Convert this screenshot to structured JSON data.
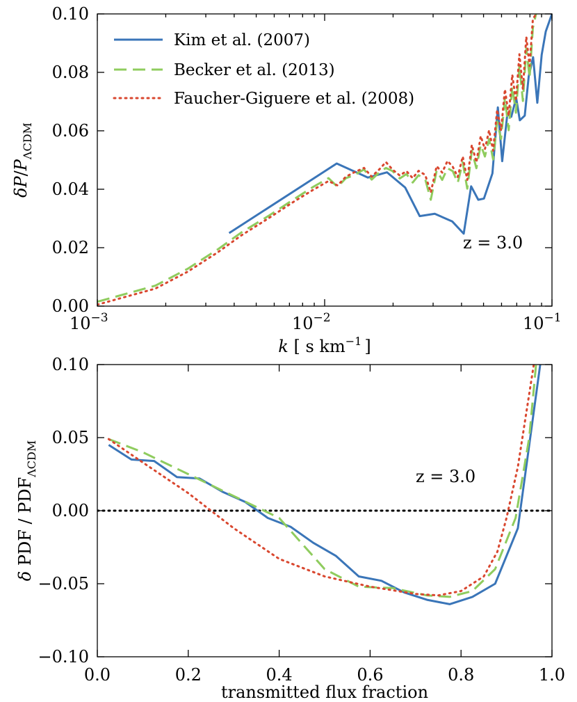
{
  "chart_data": [
    {
      "type": "line",
      "x_scale": "log",
      "xlim": [
        0.001,
        0.1
      ],
      "ylim": [
        0.0,
        0.1
      ],
      "x_ticks": [
        0.001,
        0.01,
        0.1
      ],
      "x_tick_labels": [
        {
          "base": "10",
          "exp": "−3"
        },
        {
          "base": "10",
          "exp": "−2"
        },
        {
          "base": "10",
          "exp": "−1"
        }
      ],
      "y_ticks": [
        0.0,
        0.02,
        0.04,
        0.06,
        0.08,
        0.1
      ],
      "y_tick_labels": [
        "0.00",
        "0.02",
        "0.04",
        "0.06",
        "0.08",
        "0.10"
      ],
      "xlabel": {
        "k": "k",
        "unit": " [ s km",
        "exp": "−1",
        "close": "]"
      },
      "ylabel": {
        "delta": "δ",
        "P": "P",
        "slash": "/",
        "P2": "P",
        "sub": "ΛCDM"
      },
      "annotation": "z = 3.0",
      "legend_position": "top-left",
      "series": [
        {
          "name": "Kim et al. (2007)",
          "color": "#3a75b8",
          "style": "solid",
          "x": [
            0.0038,
            0.0113,
            0.0155,
            0.0188,
            0.0226,
            0.0262,
            0.0305,
            0.0364,
            0.0409,
            0.0441,
            0.0474,
            0.0502,
            0.0547,
            0.0578,
            0.0604,
            0.0636,
            0.0662,
            0.0696,
            0.0722,
            0.0759,
            0.079,
            0.0826,
            0.0862,
            0.0901,
            0.0939,
            0.1
          ],
          "values": [
            0.025,
            0.0488,
            0.044,
            0.0458,
            0.0406,
            0.0308,
            0.0316,
            0.029,
            0.0248,
            0.041,
            0.0364,
            0.0368,
            0.0454,
            0.068,
            0.0496,
            0.0656,
            0.0648,
            0.0712,
            0.0636,
            0.0652,
            0.0786,
            0.0852,
            0.0696,
            0.086,
            0.094,
            0.1
          ]
        },
        {
          "name": "Becker et al. (2013)",
          "color": "#8fcc5e",
          "style": "dashed",
          "x": [
            0.001,
            0.0018,
            0.0025,
            0.0034,
            0.0043,
            0.0057,
            0.0072,
            0.0089,
            0.0104,
            0.0114,
            0.0124,
            0.0135,
            0.0149,
            0.0161,
            0.0174,
            0.0186,
            0.0199,
            0.0214,
            0.0229,
            0.0244,
            0.0259,
            0.0277,
            0.0293,
            0.0311,
            0.0329,
            0.0347,
            0.0366,
            0.0385,
            0.0405,
            0.0424,
            0.0444,
            0.0465,
            0.0486,
            0.0507,
            0.0529,
            0.0551,
            0.0574,
            0.0597,
            0.0621,
            0.0645,
            0.0669,
            0.0694,
            0.0719,
            0.0745,
            0.0771,
            0.0797,
            0.0824,
            0.0851
          ],
          "values": [
            0.0015,
            0.007,
            0.0128,
            0.0195,
            0.0252,
            0.031,
            0.0362,
            0.0408,
            0.0438,
            0.0408,
            0.0438,
            0.0448,
            0.0468,
            0.0433,
            0.0458,
            0.0473,
            0.0462,
            0.0437,
            0.0452,
            0.0423,
            0.0448,
            0.0434,
            0.0364,
            0.0464,
            0.0432,
            0.0472,
            0.0462,
            0.0422,
            0.0492,
            0.0402,
            0.0532,
            0.0472,
            0.0552,
            0.0512,
            0.0572,
            0.0502,
            0.0632,
            0.0572,
            0.0712,
            0.0602,
            0.0752,
            0.0662,
            0.0822,
            0.0702,
            0.0882,
            0.0782,
            0.0952,
            0.1
          ]
        },
        {
          "name": "Faucher-Giguere et al. (2008)",
          "color": "#d9472f",
          "style": "dotted",
          "x": [
            0.001,
            0.0018,
            0.0025,
            0.0034,
            0.0043,
            0.0057,
            0.0072,
            0.0089,
            0.0104,
            0.0114,
            0.0124,
            0.0135,
            0.0149,
            0.0161,
            0.0174,
            0.0186,
            0.0199,
            0.0214,
            0.0229,
            0.0244,
            0.0259,
            0.0277,
            0.0293,
            0.0311,
            0.0329,
            0.0347,
            0.0366,
            0.0385,
            0.0405,
            0.0424,
            0.0444,
            0.0465,
            0.0486,
            0.0507,
            0.0529,
            0.0551,
            0.0574,
            0.0597,
            0.0621,
            0.0645,
            0.0669,
            0.0694,
            0.0719,
            0.0745,
            0.0771,
            0.0797,
            0.0824,
            0.0851
          ],
          "values": [
            0.0005,
            0.006,
            0.0118,
            0.0185,
            0.0242,
            0.0302,
            0.0354,
            0.0398,
            0.0428,
            0.0413,
            0.0443,
            0.0458,
            0.0473,
            0.0443,
            0.0468,
            0.0493,
            0.0467,
            0.0447,
            0.0462,
            0.0438,
            0.0463,
            0.0449,
            0.0389,
            0.0479,
            0.0457,
            0.0497,
            0.0477,
            0.0442,
            0.0512,
            0.0432,
            0.0552,
            0.0492,
            0.0582,
            0.0537,
            0.0602,
            0.0532,
            0.0672,
            0.0602,
            0.0742,
            0.0652,
            0.0792,
            0.0702,
            0.0862,
            0.0742,
            0.0922,
            0.0822,
            0.0982,
            0.1
          ]
        }
      ]
    },
    {
      "type": "line",
      "x_scale": "linear",
      "xlim": [
        0.0,
        1.0
      ],
      "ylim": [
        -0.1,
        0.1
      ],
      "x_ticks": [
        0.0,
        0.2,
        0.4,
        0.6,
        0.8,
        1.0
      ],
      "x_tick_labels": [
        "0.0",
        "0.2",
        "0.4",
        "0.6",
        "0.8",
        "1.0"
      ],
      "y_ticks": [
        -0.1,
        -0.05,
        0.0,
        0.05,
        0.1
      ],
      "y_tick_labels": [
        "−0.10",
        "−0.05",
        "0.00",
        "0.05",
        "0.10"
      ],
      "xlabel": "transmitted flux fraction",
      "ylabel": {
        "delta": "δ",
        "main": " PDF / PDF",
        "sub": "ΛCDM"
      },
      "annotation": "z = 3.0",
      "reference_line": {
        "y": 0.0,
        "style": "dotted",
        "color": "#000000"
      },
      "series": [
        {
          "name": "Kim et al. (2007)",
          "color": "#3a75b8",
          "style": "solid",
          "x": [
            0.025,
            0.075,
            0.125,
            0.175,
            0.225,
            0.275,
            0.325,
            0.375,
            0.425,
            0.475,
            0.525,
            0.575,
            0.625,
            0.675,
            0.725,
            0.775,
            0.825,
            0.875,
            0.925,
            0.975
          ],
          "values": [
            0.045,
            0.035,
            0.034,
            0.023,
            0.022,
            0.013,
            0.006,
            -0.005,
            -0.011,
            -0.022,
            -0.031,
            -0.045,
            -0.048,
            -0.056,
            -0.061,
            -0.064,
            -0.059,
            -0.05,
            -0.012,
            0.102
          ]
        },
        {
          "name": "Becker et al. (2013)",
          "color": "#8fcc5e",
          "style": "dashed",
          "x": [
            0.025,
            0.1,
            0.2,
            0.3,
            0.4,
            0.5,
            0.575,
            0.65,
            0.725,
            0.775,
            0.825,
            0.875,
            0.92,
            0.95,
            0.965
          ],
          "values": [
            0.049,
            0.04,
            0.025,
            0.01,
            -0.005,
            -0.04,
            -0.052,
            -0.053,
            -0.058,
            -0.059,
            -0.055,
            -0.04,
            -0.005,
            0.05,
            0.1
          ]
        },
        {
          "name": "Faucher-Giguere et al. (2008)",
          "color": "#d9472f",
          "style": "dotted",
          "x": [
            0.025,
            0.1,
            0.2,
            0.3,
            0.4,
            0.5,
            0.6,
            0.7,
            0.75,
            0.8,
            0.85,
            0.88,
            0.9,
            0.925,
            0.945,
            0.96
          ],
          "values": [
            0.049,
            0.033,
            0.012,
            -0.012,
            -0.033,
            -0.045,
            -0.052,
            -0.057,
            -0.058,
            -0.055,
            -0.045,
            -0.028,
            -0.005,
            0.03,
            0.07,
            0.1
          ]
        }
      ]
    }
  ]
}
